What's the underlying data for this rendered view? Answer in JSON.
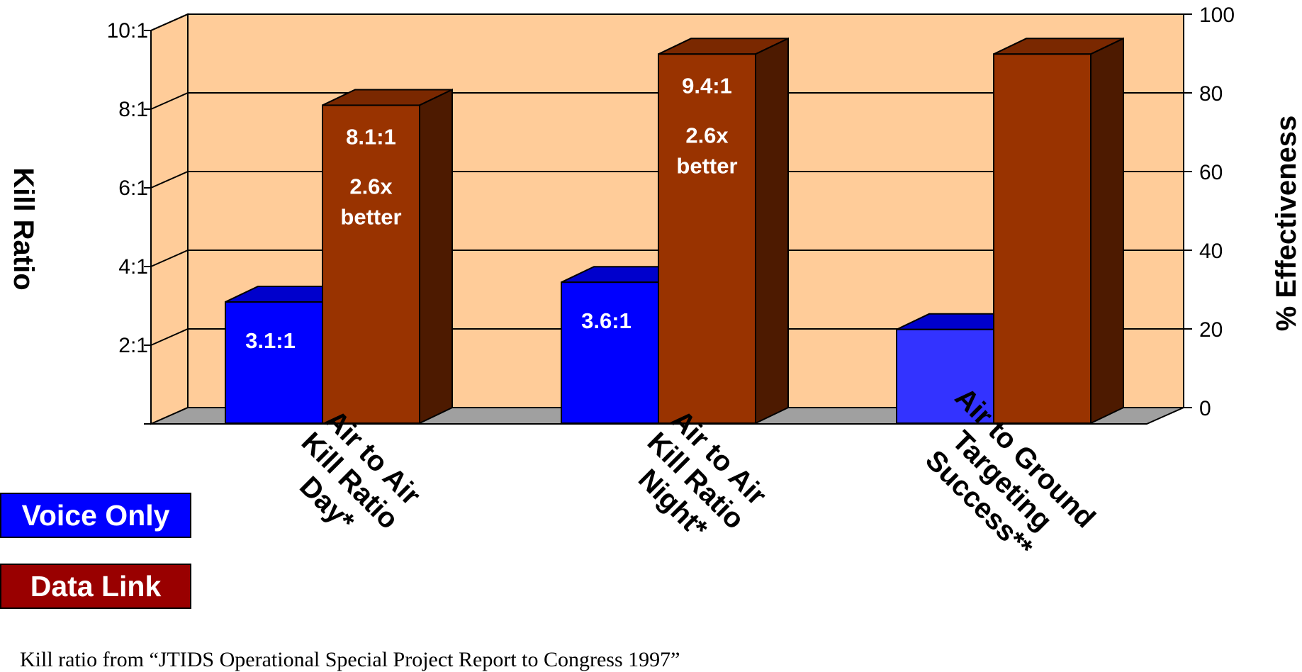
{
  "chart_data": {
    "type": "bar",
    "categories": [
      [
        "Air to Air",
        "Kill Ratio",
        "Day*"
      ],
      [
        "Air to Air",
        "Kill Ratio",
        "Night*"
      ],
      [
        "Air to Ground",
        "Targeting",
        "Success**"
      ]
    ],
    "left_axis": {
      "title": "Kill Ratio",
      "tick_labels": [
        "2:1",
        "4:1",
        "6:1",
        "8:1",
        "10:1"
      ],
      "ticks": [
        2,
        4,
        6,
        8,
        10
      ],
      "range": [
        0,
        10
      ]
    },
    "right_axis": {
      "title": "% Effectiveness",
      "tick_labels": [
        "0",
        "20",
        "40",
        "60",
        "80",
        "100"
      ],
      "ticks": [
        0,
        20,
        40,
        60,
        80,
        100
      ],
      "range": [
        0,
        100
      ]
    },
    "series": [
      {
        "name": "Voice Only",
        "values": [
          3.1,
          3.6,
          24
        ],
        "units": [
          "kill ratio",
          "kill ratio",
          "% effectiveness"
        ],
        "data_labels": [
          [
            "3.1:1"
          ],
          [
            "3.6:1"
          ],
          []
        ]
      },
      {
        "name": "Data Link",
        "values": [
          8.1,
          9.4,
          94
        ],
        "units": [
          "kill ratio",
          "kill ratio",
          "% effectiveness"
        ],
        "data_labels": [
          [
            "8.1:1",
            "2.6x",
            "better"
          ],
          [
            "9.4:1",
            "2.6x",
            "better"
          ],
          []
        ]
      }
    ],
    "grid": true,
    "legend_position": "left-bottom",
    "three_d": true
  },
  "colors": {
    "wall": "#FFCC99",
    "floor": "#A0A0A0",
    "voice_front": "#0000FF",
    "voice_top": "#0000CC",
    "voice_side": "#000099",
    "voice_front_alt": "#3333FF",
    "datalink_front": "#993300",
    "datalink_top": "#7A2800",
    "datalink_side": "#4D1A00",
    "legend_voice": "#0000FF",
    "legend_datalink": "#990000"
  },
  "legend": {
    "voice_label": "Voice Only",
    "datalink_label": "Data Link"
  },
  "footnote": "Kill ratio from “JTIDS Operational Special Project Report to Congress 1997”"
}
